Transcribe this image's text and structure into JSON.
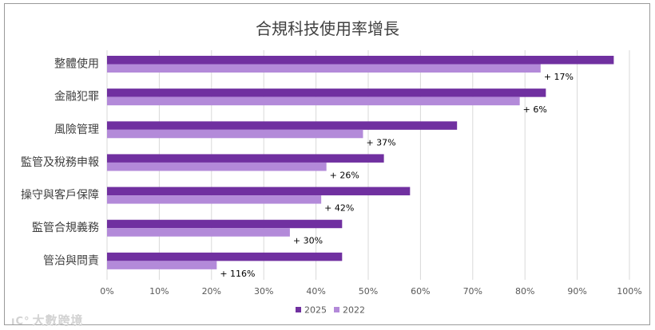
{
  "chart_data": {
    "type": "bar",
    "orientation": "horizontal",
    "title": "合規科技使用率增長",
    "categories": [
      "整體使用",
      "金融犯罪",
      "風險管理",
      "監管及稅務申報",
      "操守與客戶保障",
      "監管合規義務",
      "管治與問責"
    ],
    "series": [
      {
        "name": "2025",
        "values": [
          97,
          84,
          67,
          53,
          58,
          45,
          45
        ]
      },
      {
        "name": "2022",
        "values": [
          83,
          79,
          49,
          42,
          41,
          35,
          21
        ]
      }
    ],
    "annotations": [
      "+ 17%",
      "+ 6%",
      "+ 37%",
      "+ 26%",
      "+ 42%",
      "+ 30%",
      "+ 116%"
    ],
    "xlim": [
      0,
      100
    ],
    "xticks": [
      "0%",
      "10%",
      "20%",
      "30%",
      "40%",
      "50%",
      "60%",
      "70%",
      "80%",
      "90%",
      "100%"
    ],
    "grid": true,
    "legend_position": "bottom",
    "colors": {
      "2025": "#7030a0",
      "2022": "#b38ad9"
    }
  },
  "watermark": {
    "icon": "sheep-logo-icon",
    "text": "大數跨境"
  }
}
